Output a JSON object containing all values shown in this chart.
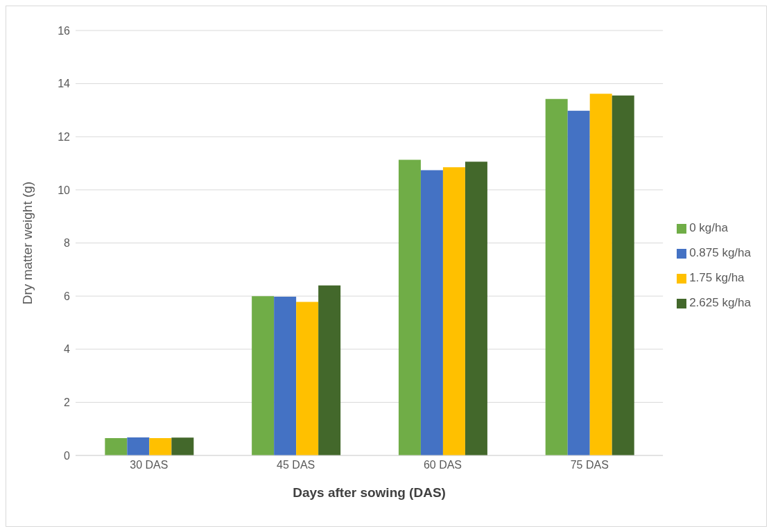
{
  "chart_data": {
    "type": "bar",
    "xlabel": "Days after sowing (DAS)",
    "ylabel": "Dry matter weight (g)",
    "categories": [
      "30 DAS",
      "45 DAS",
      "60 DAS",
      "75 DAS"
    ],
    "series": [
      {
        "name": "0 kg/ha",
        "color": "#70ad47",
        "values": [
          0.65,
          6.0,
          11.13,
          13.42
        ]
      },
      {
        "name": "0.875 kg/ha",
        "color": "#4472c4",
        "values": [
          0.68,
          5.98,
          10.74,
          12.98
        ]
      },
      {
        "name": "1.75 kg/ha",
        "color": "#ffc000",
        "values": [
          0.65,
          5.78,
          10.85,
          13.62
        ]
      },
      {
        "name": "2.625 kg/ha",
        "color": "#43682b",
        "values": [
          0.67,
          6.4,
          11.06,
          13.55
        ]
      }
    ],
    "ylim": [
      0,
      16
    ],
    "yticks": [
      0,
      2,
      4,
      6,
      8,
      10,
      12,
      14,
      16
    ],
    "grid": "y",
    "legend": "right"
  }
}
